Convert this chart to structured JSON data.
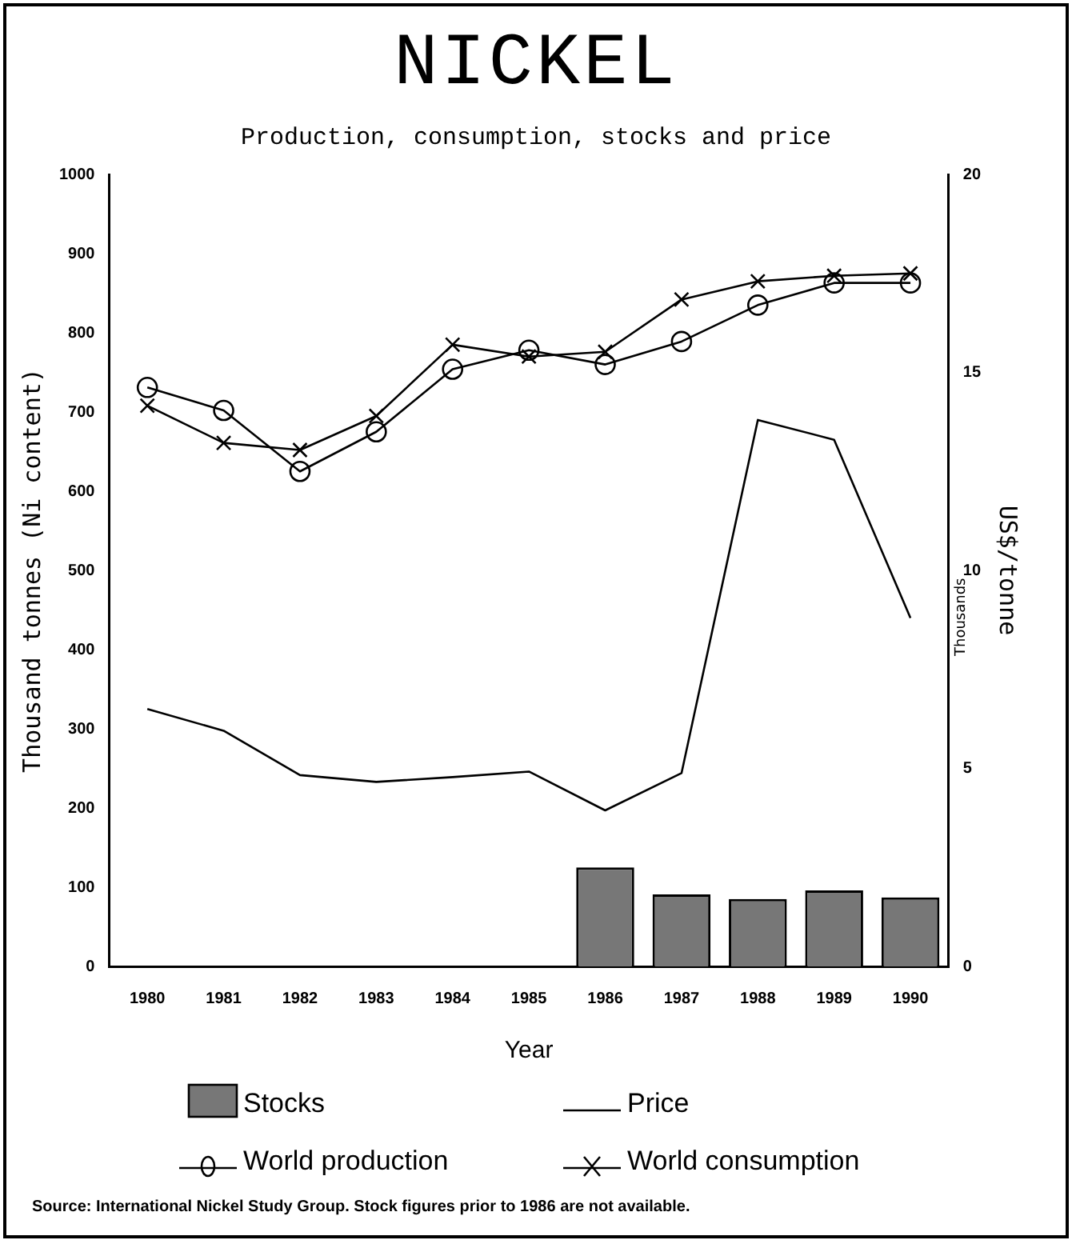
{
  "chart_data": {
    "type": "bar",
    "title": "NICKEL",
    "subtitle": "Production, consumption, stocks and price",
    "xlabel": "Year",
    "ylabel": "Thousand tonnes (Ni content)",
    "y2label": "US$/tonne",
    "categories": [
      "1980",
      "1981",
      "1982",
      "1983",
      "1984",
      "1985",
      "1986",
      "1987",
      "1988",
      "1989",
      "1990"
    ],
    "series": [
      {
        "name": "Stocks",
        "type": "bar",
        "color": "#777777",
        "values": [
          null,
          null,
          null,
          null,
          null,
          null,
          125,
          91,
          85,
          96,
          87
        ]
      },
      {
        "name": "Price",
        "type": "line",
        "axis": "y2",
        "marker": "none",
        "color": "#000000",
        "values": [
          6.5,
          5.95,
          4.83,
          4.66,
          4.78,
          4.92,
          3.94,
          4.88,
          13.8,
          13.3,
          8.8
        ]
      },
      {
        "name": "World production",
        "type": "line",
        "marker": "circle",
        "color": "#000000",
        "values": [
          731,
          702,
          625,
          675,
          754,
          778,
          760,
          789,
          835,
          863,
          863
        ]
      },
      {
        "name": "World consumption",
        "type": "line",
        "marker": "cross",
        "color": "#000000",
        "values": [
          708,
          661,
          652,
          695,
          785,
          770,
          776,
          842,
          865,
          872,
          875
        ]
      }
    ],
    "ylim": [
      0,
      1000
    ],
    "yticks": [
      0,
      100,
      200,
      300,
      400,
      500,
      600,
      700,
      800,
      900,
      1000
    ],
    "y2lim": [
      0,
      20
    ],
    "y2ticks": [
      0,
      5,
      10,
      15,
      20
    ],
    "grid": false,
    "legend": "bottom",
    "annotations": [
      "Thousands",
      "Source: International Nickel Study Group. Stock figures prior to 1986 are not available."
    ]
  }
}
